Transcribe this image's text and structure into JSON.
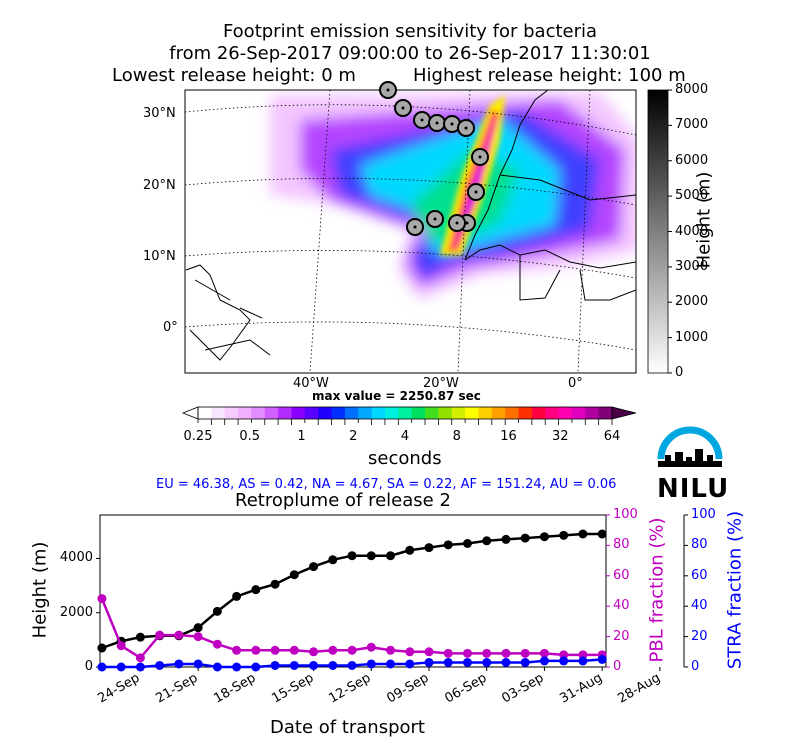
{
  "header": {
    "title_line1": "Footprint emission sensitivity for bacteria",
    "title_line2": "from 26-Sep-2017 09:00:00 to 26-Sep-2017 11:30:01",
    "lowest_release": "Lowest release height: 0 m",
    "highest_release": "Highest release height: 100 m"
  },
  "map": {
    "lat_labels": [
      "30°N",
      "20°N",
      "10°N",
      "0°"
    ],
    "lon_labels": [
      "40°W",
      "20°W",
      "0°"
    ],
    "max_value_text": "max value = 2250.87 sec"
  },
  "height_colorbar": {
    "label": "Height (m)",
    "ticks": [
      "0",
      "1000",
      "2000",
      "3000",
      "4000",
      "5000",
      "6000",
      "7000",
      "8000"
    ]
  },
  "sensitivity_colorbar": {
    "label": "seconds",
    "ticks": [
      "0.25",
      "0.5",
      "1",
      "2",
      "4",
      "8",
      "16",
      "32",
      "64"
    ]
  },
  "fractions_text": "EU = 46.38,  AS = 0.42,  NA = 4.67,  SA = 0.22,  AF = 151.24,  AU = 0.06",
  "logo": {
    "text": "NILU",
    "color": "#00a6e0"
  },
  "chart_data": {
    "type": "line",
    "title": "Retroplume of release 2",
    "xlabel": "Date of transport",
    "x_ticks": [
      "24-Sep",
      "21-Sep",
      "18-Sep",
      "15-Sep",
      "12-Sep",
      "09-Sep",
      "06-Sep",
      "03-Sep",
      "31-Aug",
      "28-Aug"
    ],
    "x": [
      26,
      25,
      24,
      23,
      22,
      21,
      20,
      19,
      18,
      17,
      16,
      15,
      14,
      13,
      12,
      11,
      10,
      9,
      8,
      7,
      6,
      5,
      4,
      3,
      2,
      1,
      0
    ],
    "x_unit": "days before 26-Sep-2017 (release)",
    "left_axis": {
      "label": "Height (m)",
      "ylim": [
        0,
        5600
      ],
      "ticks": [
        "0",
        "2000",
        "4000"
      ]
    },
    "right_axis_1": {
      "label": "PBL fraction (%)",
      "ylim": [
        0,
        100
      ],
      "ticks": [
        "0",
        "20",
        "40",
        "60",
        "80",
        "100"
      ],
      "color": "#c000c0"
    },
    "right_axis_2": {
      "label": "STRA fraction (%)",
      "ylim": [
        0,
        100
      ],
      "ticks": [
        "0",
        "20",
        "40",
        "60",
        "80",
        "100"
      ],
      "color": "#0000ff"
    },
    "series": [
      {
        "name": "Height (m)",
        "axis": "left",
        "color": "#000000",
        "values": [
          700,
          950,
          1100,
          1150,
          1150,
          1450,
          2050,
          2600,
          2850,
          3050,
          3400,
          3700,
          3950,
          4100,
          4100,
          4100,
          4300,
          4400,
          4500,
          4550,
          4650,
          4700,
          4750,
          4800,
          4850,
          4900,
          4900
        ]
      },
      {
        "name": "PBL fraction (%)",
        "axis": "right_1",
        "color": "#c000c0",
        "values": [
          45,
          14,
          6,
          21,
          21,
          20,
          15,
          11,
          11,
          11,
          11,
          10,
          11,
          11,
          13,
          11,
          10,
          10,
          9,
          9,
          9,
          9,
          9,
          9,
          8,
          8,
          8
        ]
      },
      {
        "name": "STRA fraction (%)",
        "axis": "right_2",
        "color": "#0000ff",
        "values": [
          0,
          0,
          0,
          1,
          2,
          2,
          0,
          0,
          0,
          1,
          1,
          1,
          1,
          1,
          2,
          2,
          2,
          3,
          3,
          3,
          3,
          3,
          3,
          4,
          4,
          4,
          5
        ]
      }
    ]
  }
}
